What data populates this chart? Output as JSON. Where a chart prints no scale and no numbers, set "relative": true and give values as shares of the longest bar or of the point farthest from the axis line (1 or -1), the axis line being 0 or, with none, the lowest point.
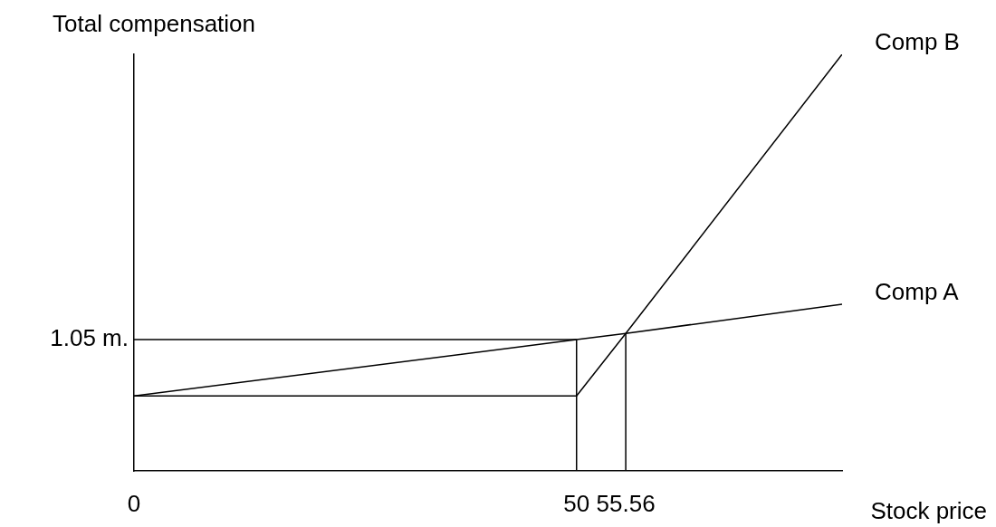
{
  "chart_data": {
    "type": "line",
    "xlabel": "Stock price",
    "ylabel": "Total compensation",
    "relative": true,
    "xlim": [
      0,
      80
    ],
    "xticks": [
      0,
      50,
      55.56
    ],
    "annotations": [
      {
        "text": "1.05 m.",
        "x": 0,
        "y": 0.315
      }
    ],
    "grid": false,
    "legend": false,
    "marker": "none",
    "line_style": "solid",
    "series": [
      {
        "name": "Comp A",
        "color": "#000000",
        "x": [
          0,
          50,
          55.56,
          80
        ],
        "values": [
          0.18,
          0.315,
          0.33,
          0.4
        ]
      },
      {
        "name": "Comp B",
        "color": "#000000",
        "x": [
          0,
          50,
          55.56,
          80
        ],
        "values": [
          0.18,
          0.18,
          0.33,
          1
        ]
      },
      {
        "color": "#000000",
        "x": [
          0,
          50
        ],
        "values": [
          0.315,
          0.315
        ]
      },
      {
        "color": "#000000",
        "x": [
          50,
          50
        ],
        "values": [
          0,
          0.315
        ]
      },
      {
        "color": "#000000",
        "x": [
          55.56,
          55.56
        ],
        "values": [
          0,
          0.33
        ]
      }
    ]
  }
}
